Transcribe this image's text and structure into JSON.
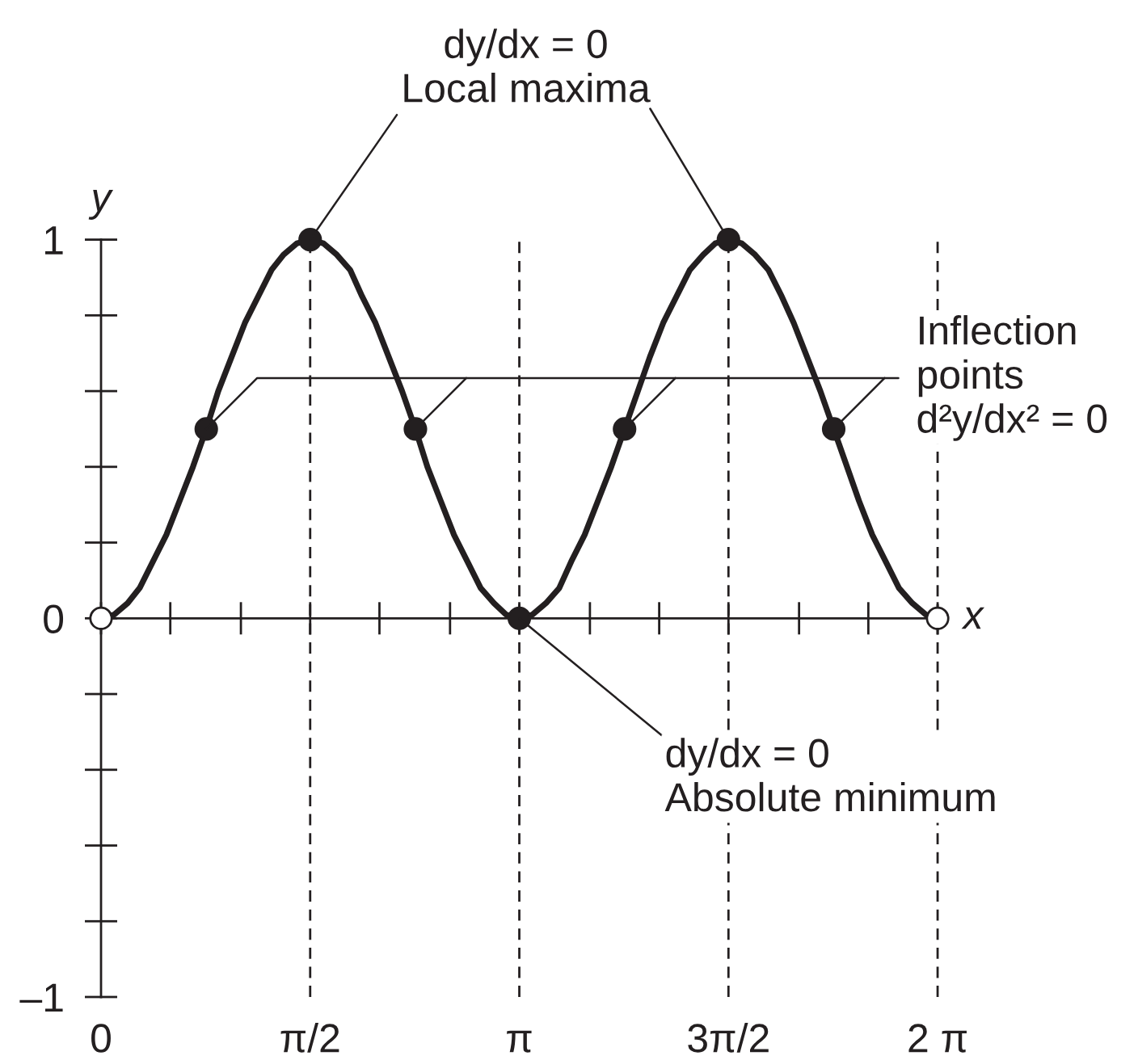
{
  "chart_data": {
    "type": "line",
    "xlabel": "x",
    "ylabel": "y",
    "xlim": [
      0,
      6.35
    ],
    "ylim": [
      -1,
      1
    ],
    "xticks": [
      0,
      {
        "value": 0.52,
        "label": null
      },
      {
        "value": 1.05,
        "label": null
      },
      {
        "value": 1.57,
        "label": "π/2"
      },
      {
        "value": 2.09,
        "label": null
      },
      {
        "value": 2.62,
        "label": null
      },
      {
        "value": 3.14,
        "label": "π"
      },
      {
        "value": 3.67,
        "label": null
      },
      {
        "value": 4.19,
        "label": null
      },
      {
        "value": 4.71,
        "label": "3π/2"
      },
      {
        "value": 5.24,
        "label": null
      },
      {
        "value": 5.76,
        "label": null
      },
      {
        "value": 6.28,
        "label": "2 π"
      }
    ],
    "yticks": [
      {
        "value": -1,
        "label": "–1"
      },
      {
        "value": -0.8,
        "label": null
      },
      {
        "value": -0.6,
        "label": null
      },
      {
        "value": -0.4,
        "label": null
      },
      {
        "value": -0.2,
        "label": null
      },
      0,
      {
        "value": 0.2,
        "label": null
      },
      {
        "value": 0.4,
        "label": null
      },
      {
        "value": 0.6,
        "label": null
      },
      {
        "value": 0.8,
        "label": null
      },
      1
    ],
    "series": [
      {
        "color": "#231f20",
        "marker": "none",
        "line_style": "solid",
        "x": [
          0,
          0.1,
          0.2,
          0.29,
          0.39,
          0.49,
          0.59,
          0.69,
          0.79,
          0.88,
          0.98,
          1.08,
          1.18,
          1.28,
          1.37,
          1.47,
          1.57,
          1.67,
          1.77,
          1.87,
          1.96,
          2.06,
          2.16,
          2.26,
          2.36,
          2.45,
          2.55,
          2.65,
          2.75,
          2.85,
          2.95,
          3.04,
          3.14,
          3.24,
          3.34,
          3.44,
          3.53,
          3.63,
          3.73,
          3.83,
          3.93,
          4.03,
          4.12,
          4.22,
          4.32,
          4.42,
          4.52,
          4.61,
          4.71,
          4.81,
          4.91,
          5.01,
          5.11,
          5.2,
          5.3,
          5.4,
          5.5,
          5.6,
          5.69,
          5.79,
          5.89,
          5.99,
          6.09,
          6.19,
          6.28
        ],
        "values": [
          0,
          0.01,
          0.04,
          0.08,
          0.15,
          0.22,
          0.31,
          0.4,
          0.5,
          0.6,
          0.69,
          0.78,
          0.85,
          0.92,
          0.96,
          0.99,
          1,
          0.99,
          0.96,
          0.92,
          0.85,
          0.78,
          0.69,
          0.6,
          0.5,
          0.4,
          0.31,
          0.22,
          0.15,
          0.08,
          0.04,
          0.01,
          0,
          0.01,
          0.04,
          0.08,
          0.15,
          0.22,
          0.31,
          0.4,
          0.5,
          0.6,
          0.69,
          0.78,
          0.85,
          0.92,
          0.96,
          0.99,
          1,
          0.99,
          0.96,
          0.92,
          0.85,
          0.78,
          0.69,
          0.6,
          0.5,
          0.4,
          0.31,
          0.22,
          0.15,
          0.08,
          0.04,
          0.01,
          0
        ]
      },
      {
        "type": "scatter",
        "color": "#231f20",
        "marker": "circle",
        "x": [
          0.79,
          1.57,
          2.36,
          3.14,
          3.93,
          4.71,
          5.5
        ],
        "values": [
          0.5,
          1,
          0.5,
          0,
          0.5,
          1,
          0.5
        ]
      },
      {
        "type": "scatter",
        "color": "#ffffff",
        "marker": "circle",
        "x": [
          0,
          6.28
        ],
        "values": [
          0,
          0
        ]
      }
    ],
    "ref_lines": [
      {
        "axis": "x",
        "value": 1.57,
        "color": "#231f20",
        "line_style": "dashed"
      },
      {
        "axis": "x",
        "value": 3.14,
        "color": "#231f20",
        "line_style": "dashed"
      },
      {
        "axis": "x",
        "value": 4.71,
        "color": "#231f20",
        "line_style": "dashed"
      },
      {
        "axis": "x",
        "value": 6.28,
        "color": "#231f20",
        "line_style": "dashed"
      }
    ],
    "annotations": [
      {
        "text": "dy/dx = 0\nLocal maxima",
        "x": 1.57,
        "y": 1
      },
      {
        "text": "Inflection\npoints\nd²y/dx² = 0",
        "x": 0.79,
        "y": 0.5
      },
      {
        "text": "dy/dx = 0\nAbsolute minimum",
        "x": 3.14,
        "y": 0
      }
    ],
    "grid": false
  }
}
